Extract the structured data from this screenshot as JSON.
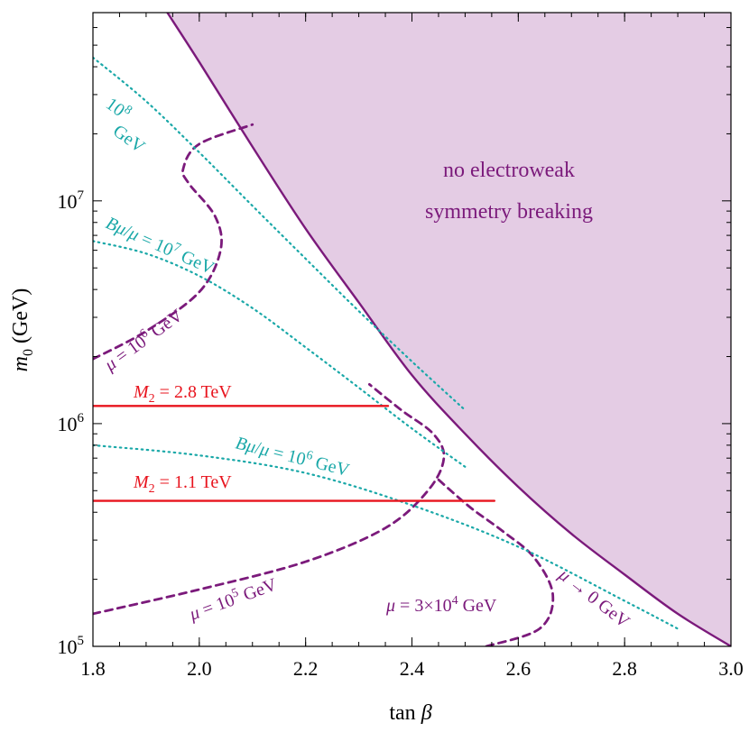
{
  "chart_data": {
    "type": "line",
    "xlabel": "tan β",
    "ylabel": "m0 (GeV)",
    "xlim": [
      1.8,
      3.0
    ],
    "ylim": [
      100000,
      70000000
    ],
    "y_scale": "log",
    "grid": false,
    "x_ticks": [
      {
        "value": 1.8,
        "label": "1.8"
      },
      {
        "value": 2.0,
        "label": "2.0"
      },
      {
        "value": 2.2,
        "label": "2.2"
      },
      {
        "value": 2.4,
        "label": "2.4"
      },
      {
        "value": 2.6,
        "label": "2.6"
      },
      {
        "value": 2.8,
        "label": "2.8"
      },
      {
        "value": 3.0,
        "label": "3.0"
      }
    ],
    "y_ticks": [
      {
        "value": 100000,
        "mantissa": "10",
        "exp": "5"
      },
      {
        "value": 1000000,
        "mantissa": "10",
        "exp": "6"
      },
      {
        "value": 10000000,
        "mantissa": "10",
        "exp": "7"
      }
    ],
    "region": {
      "label_lines": [
        "no electroweak",
        "symmetry breaking"
      ],
      "fill": "#e4cce4",
      "text_color": "#7b1a7b"
    },
    "series": [
      {
        "name": "μ → 0 GeV",
        "style": "solid",
        "color": "#7b1a7b",
        "x": [
          1.94,
          2.0,
          2.1,
          2.2,
          2.3,
          2.4,
          2.5,
          2.6,
          2.7,
          2.8,
          2.9,
          3.0
        ],
        "y": [
          70000000,
          42000000,
          17500000,
          7500000,
          3500000,
          1650000,
          900000,
          520000,
          320000,
          210000,
          140000,
          100000
        ]
      },
      {
        "name": "μ = 10^6 GeV",
        "style": "dashed",
        "color": "#7b1a7b",
        "x": [
          1.8,
          1.9,
          2.0,
          2.04,
          2.03,
          1.98,
          1.97,
          2.0,
          2.1
        ],
        "y": [
          1950000,
          2600000,
          3900000,
          6000000,
          8500000,
          12000000,
          14000000,
          18000000,
          22000000
        ]
      },
      {
        "name": "μ = 10^5 GeV",
        "style": "dashed",
        "color": "#7b1a7b",
        "x": [
          1.8,
          2.0,
          2.2,
          2.35,
          2.43,
          2.46,
          2.44,
          2.38,
          2.32
        ],
        "y": [
          140000,
          180000,
          240000,
          340000,
          500000,
          700000,
          900000,
          1150000,
          1500000
        ]
      },
      {
        "name": "μ = 3×10^4 GeV",
        "style": "dashed",
        "color": "#7b1a7b",
        "x": [
          2.54,
          2.64,
          2.665,
          2.63,
          2.57,
          2.51,
          2.45
        ],
        "y": [
          100000,
          120000,
          170000,
          250000,
          330000,
          420000,
          560000
        ]
      },
      {
        "name": "Bμ/μ = 10^8 GeV",
        "style": "dotted",
        "color": "#1aa8a8",
        "x": [
          1.8,
          1.9,
          2.0,
          2.1,
          2.2,
          2.3,
          2.4,
          2.5
        ],
        "y": [
          44000000,
          28000000,
          16500000,
          9500000,
          5500000,
          3200000,
          1900000,
          1150000
        ]
      },
      {
        "name": "Bμ/μ = 10^7 GeV",
        "style": "dotted",
        "color": "#1aa8a8",
        "x": [
          1.8,
          1.9,
          2.0,
          2.1,
          2.2,
          2.3,
          2.4,
          2.5
        ],
        "y": [
          6600000,
          5800000,
          4600000,
          3300000,
          2200000,
          1450000,
          950000,
          640000
        ]
      },
      {
        "name": "Bμ/μ = 10^6 GeV",
        "style": "dotted",
        "color": "#1aa8a8",
        "x": [
          1.8,
          2.0,
          2.2,
          2.4,
          2.6,
          2.8,
          2.9
        ],
        "y": [
          800000,
          720000,
          600000,
          430000,
          280000,
          160000,
          120000
        ]
      },
      {
        "name": "M2 = 2.8 TeV",
        "style": "solid",
        "color": "#e8141e",
        "x": [
          1.8,
          2.355
        ],
        "y": [
          1200000,
          1200000
        ]
      },
      {
        "name": "M2 = 1.1 TeV",
        "style": "solid",
        "color": "#e8141e",
        "x": [
          1.8,
          2.555
        ],
        "y": [
          450000,
          450000
        ]
      }
    ],
    "annotations": {
      "m2_28": "M2 = 2.8 TeV",
      "m2_11": "M2 = 1.1 TeV",
      "bmu_8_a": "10^8",
      "bmu_8_b": "GeV",
      "bmu_7": "Bμ/μ = 10^7 GeV",
      "bmu_6": "Bμ/μ = 10^6 GeV",
      "mu_1e6": "μ = 10^6 GeV",
      "mu_1e5": "μ = 10^5 GeV",
      "mu_3e4": "μ = 3×10^4 GeV",
      "mu_0": "μ → 0 GeV"
    }
  }
}
